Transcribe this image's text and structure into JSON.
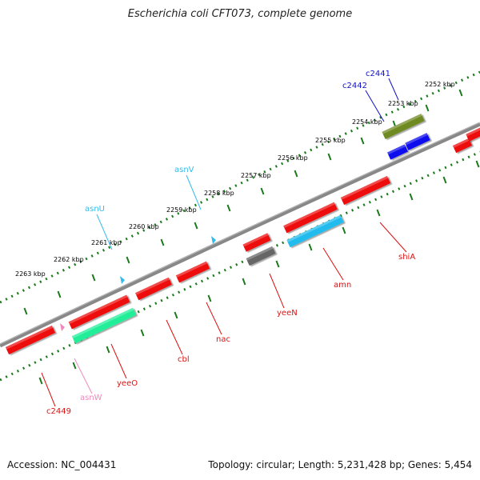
{
  "title": "Escherichia coli CFT073, complete genome",
  "footer": {
    "accession": "Accession: NC_004431",
    "summary": "Topology: circular; Length: 5,231,428 bp; Genes: 5,454"
  },
  "colors": {
    "backbone": "#8c8c8c",
    "ruler": "#1a7a1a",
    "forward_gene": "#ee1111",
    "cds_blue": "#1111ee",
    "cds_olive": "#6f8a22",
    "cds_grey": "#666666",
    "cds_cyan": "#22bbee",
    "cds_green": "#22ee99",
    "trna_cyan": "#33bbee",
    "trna_pink": "#ee88bb"
  },
  "ruler_ticks": [
    {
      "label": "2252 kbp"
    },
    {
      "label": "2253 kbp"
    },
    {
      "label": "2254 kbp"
    },
    {
      "label": "2255 kbp"
    },
    {
      "label": "2256 kbp"
    },
    {
      "label": "2257 kbp"
    },
    {
      "label": "2258 kbp"
    },
    {
      "label": "2259 kbp"
    },
    {
      "label": "2260 kbp"
    },
    {
      "label": "2261 kbp"
    },
    {
      "label": "2262 kbp"
    },
    {
      "label": "2263 kbp"
    }
  ],
  "gene_labels": [
    {
      "name": "c2441",
      "color": "#1111cc"
    },
    {
      "name": "c2442",
      "color": "#1111cc"
    },
    {
      "name": "asnV",
      "color": "#33bbee"
    },
    {
      "name": "asnU",
      "color": "#33bbee"
    },
    {
      "name": "shiA",
      "color": "#dd1111"
    },
    {
      "name": "amn",
      "color": "#dd1111"
    },
    {
      "name": "yeeN",
      "color": "#dd1111"
    },
    {
      "name": "nac",
      "color": "#dd1111"
    },
    {
      "name": "cbl",
      "color": "#dd1111"
    },
    {
      "name": "yeeO",
      "color": "#dd1111"
    },
    {
      "name": "asnW",
      "color": "#ee88bb"
    },
    {
      "name": "c2449",
      "color": "#dd1111"
    }
  ]
}
